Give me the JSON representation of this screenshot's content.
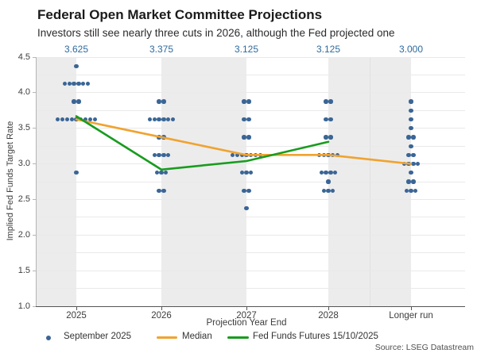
{
  "header": {
    "title": "Federal Open Market Committee Projections",
    "subtitle": "Investors still see nearly three cuts in 2026, although the Fed projected one"
  },
  "chart_data": {
    "type": "scatter",
    "title": "Federal Open Market Committee Projections",
    "subtitle": "Investors still see nearly three cuts in 2026, although the Fed projected one",
    "xlabel": "Projection Year End",
    "ylabel": "Implied Fed Funds Target Rate",
    "categories": [
      "2025",
      "2026",
      "2027",
      "2028",
      "Longer run"
    ],
    "median_top_labels": [
      "3.625",
      "3.375",
      "3.125",
      "3.125",
      "3.000"
    ],
    "ylim": [
      1.0,
      4.5
    ],
    "ytick_step": 0.5,
    "grid_step": 0.25,
    "dot_series_name": "September 2025",
    "dots": {
      "2025": [
        [
          4.375,
          1
        ],
        [
          4.125,
          6
        ],
        [
          3.875,
          2
        ],
        [
          3.625,
          9
        ],
        [
          2.875,
          1
        ]
      ],
      "2026": [
        [
          3.875,
          2
        ],
        [
          3.625,
          6
        ],
        [
          3.375,
          2
        ],
        [
          3.125,
          4
        ],
        [
          2.875,
          3
        ],
        [
          2.625,
          2
        ]
      ],
      "2027": [
        [
          3.875,
          2
        ],
        [
          3.625,
          2
        ],
        [
          3.375,
          2
        ],
        [
          3.125,
          7
        ],
        [
          2.875,
          3
        ],
        [
          2.625,
          2
        ],
        [
          2.375,
          1
        ]
      ],
      "2028": [
        [
          3.875,
          2
        ],
        [
          3.625,
          2
        ],
        [
          3.375,
          2
        ],
        [
          3.125,
          5
        ],
        [
          2.875,
          4
        ],
        [
          2.75,
          1
        ],
        [
          2.625,
          3
        ]
      ],
      "Longer run": [
        [
          3.875,
          1
        ],
        [
          3.75,
          1
        ],
        [
          3.625,
          1
        ],
        [
          3.5,
          1
        ],
        [
          3.375,
          2
        ],
        [
          3.25,
          1
        ],
        [
          3.125,
          2
        ],
        [
          3.0,
          4
        ],
        [
          2.875,
          1
        ],
        [
          2.75,
          2
        ],
        [
          2.625,
          3
        ]
      ]
    },
    "median": {
      "name": "Median",
      "values": [
        3.625,
        3.375,
        3.125,
        3.125,
        3.0
      ]
    },
    "futures": {
      "name": "Fed Funds Futures 15/10/2025",
      "x_indices": [
        0,
        1,
        2,
        3
      ],
      "values": [
        3.67,
        2.92,
        3.04,
        3.31
      ]
    },
    "colors": {
      "dot": "#3a6596",
      "median": "#f0a330",
      "futures": "#189c1e",
      "top_label": "#2e6a9e",
      "band": "#ececec",
      "grid": "#e9e9e9",
      "y_axis": "#b5b5b5",
      "x_axis": "#555555"
    },
    "legend_position": "bottom",
    "source": "Source: LSEG Datastream"
  },
  "legend": {
    "items": [
      {
        "name": "September 2025",
        "marker": "dot"
      },
      {
        "name": "Median",
        "marker": "line"
      },
      {
        "name": "Fed Funds Futures 15/10/2025",
        "marker": "line"
      }
    ]
  },
  "source": "Source: LSEG Datastream"
}
